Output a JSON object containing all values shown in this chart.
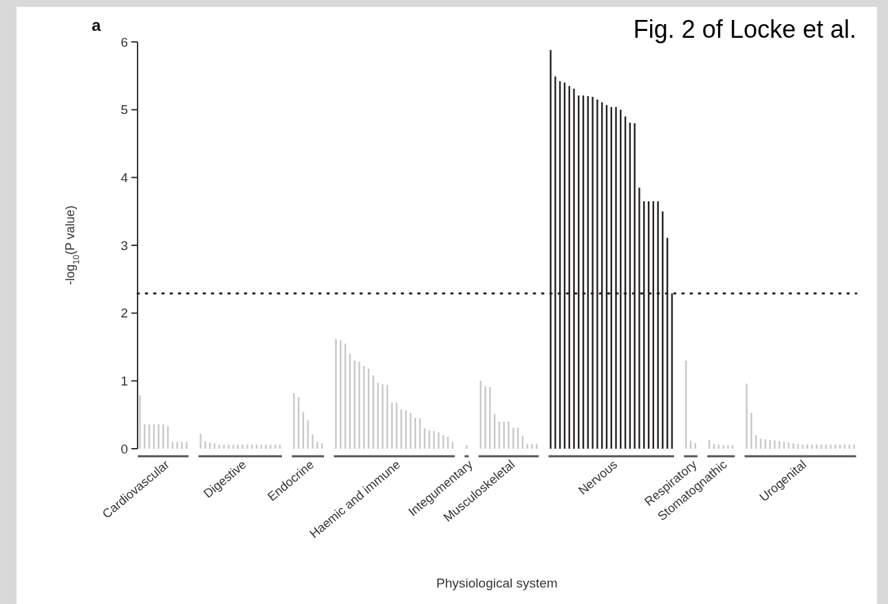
{
  "chart_data": {
    "type": "bar",
    "title": "Fig. 2 of Locke et al.",
    "ylabel": "-log$_{10}$(P value)",
    "annotations": [
      "a",
      "Physiological system"
    ],
    "ylim": [
      0,
      6
    ],
    "yticks": [
      0,
      1,
      2,
      3,
      4,
      5,
      6
    ],
    "grid": false,
    "ref_lines": [
      {
        "axis": "y",
        "value": 2.29,
        "color": "#231f20",
        "line_style": "dotted"
      }
    ],
    "categories": [
      null,
      null,
      null,
      null,
      null,
      null,
      null,
      null,
      null,
      null,
      null,
      null,
      null,
      null,
      null,
      null,
      null,
      null,
      null,
      null,
      null,
      null,
      null,
      null,
      null,
      null,
      null,
      null,
      null,
      null,
      null,
      null,
      null,
      null,
      null,
      null,
      null,
      null,
      null,
      null,
      null,
      null,
      null,
      null,
      null,
      null,
      null,
      null,
      null,
      null,
      null,
      null,
      null,
      null,
      null,
      null,
      null,
      null,
      null,
      null,
      null,
      null,
      null,
      null,
      null,
      null,
      null,
      null,
      null,
      null,
      null,
      null,
      null,
      null,
      null,
      null,
      null,
      null,
      null,
      null,
      null,
      null,
      null,
      null,
      null,
      null,
      null,
      null,
      null,
      null,
      null,
      null,
      null,
      null,
      null,
      null,
      null,
      null,
      null,
      null,
      null,
      null,
      null,
      null,
      null,
      null,
      null,
      null,
      null,
      null,
      null,
      null,
      null,
      null,
      null,
      null,
      null,
      null,
      null,
      null,
      null,
      null,
      null,
      null,
      null,
      null,
      null,
      null,
      null,
      null,
      null,
      null,
      null,
      null,
      null,
      null,
      null,
      null,
      null,
      null,
      null,
      null,
      null,
      null,
      null,
      null,
      null,
      null,
      null,
      null,
      null,
      null,
      null,
      null
    ],
    "series": [
      {
        "name": "Cardiovascular",
        "color": "#c8c8c8",
        "values": [
          0.79,
          0.36,
          0.36,
          0.36,
          0.36,
          0.36,
          0.33,
          0.1,
          0.1,
          0.1,
          0.1,
          null,
          null,
          null,
          null,
          null,
          null,
          null,
          null,
          null,
          null,
          null,
          null,
          null,
          null,
          null,
          null,
          null,
          null,
          null,
          null,
          null,
          null,
          null,
          null,
          null,
          null,
          null,
          null,
          null,
          null,
          null,
          null,
          null,
          null,
          null,
          null,
          null,
          null,
          null,
          null,
          null,
          null,
          null,
          null,
          null,
          null,
          null,
          null,
          null,
          null,
          null,
          null,
          null,
          null,
          null,
          null,
          null,
          null,
          null,
          null,
          null,
          null,
          null,
          null,
          null,
          null,
          null,
          null,
          null,
          null,
          null,
          null,
          null,
          null,
          null,
          null,
          null,
          null,
          null,
          null,
          null,
          null,
          null,
          null,
          null,
          null,
          null,
          null,
          null,
          null,
          null,
          null,
          null,
          null,
          null,
          null,
          null,
          null,
          null,
          null,
          null,
          null,
          null,
          null,
          null,
          null,
          null,
          null,
          null,
          null,
          null,
          null,
          null,
          null,
          null,
          null,
          null,
          null,
          null,
          null,
          null,
          null,
          null,
          null,
          null,
          null,
          null,
          null,
          null,
          null,
          null,
          null,
          null,
          null,
          null,
          null,
          null,
          null,
          null,
          null,
          null,
          null,
          null
        ]
      },
      {
        "name": "Digestive",
        "color": "#c8c8c8",
        "values": [
          null,
          null,
          null,
          null,
          null,
          null,
          null,
          null,
          null,
          null,
          null,
          null,
          null,
          0.22,
          0.11,
          0.09,
          0.08,
          0.06,
          0.06,
          0.06,
          0.06,
          0.06,
          0.06,
          0.06,
          0.06,
          0.06,
          0.06,
          0.06,
          0.06,
          0.06,
          0.06,
          null,
          null,
          null,
          null,
          null,
          null,
          null,
          null,
          null,
          null,
          null,
          null,
          null,
          null,
          null,
          null,
          null,
          null,
          null,
          null,
          null,
          null,
          null,
          null,
          null,
          null,
          null,
          null,
          null,
          null,
          null,
          null,
          null,
          null,
          null,
          null,
          null,
          null,
          null,
          null,
          null,
          null,
          null,
          null,
          null,
          null,
          null,
          null,
          null,
          null,
          null,
          null,
          null,
          null,
          null,
          null,
          null,
          null,
          null,
          null,
          null,
          null,
          null,
          null,
          null,
          null,
          null,
          null,
          null,
          null,
          null,
          null,
          null,
          null,
          null,
          null,
          null,
          null,
          null,
          null,
          null,
          null,
          null,
          null,
          null,
          null,
          null,
          null,
          null,
          null,
          null,
          null,
          null,
          null,
          null,
          null,
          null,
          null,
          null,
          null,
          null,
          null,
          null,
          null,
          null,
          null,
          null,
          null,
          null,
          null,
          null,
          null,
          null,
          null,
          null,
          null,
          null,
          null,
          null,
          null,
          null,
          null,
          null
        ]
      },
      {
        "name": "Endocrine",
        "color": "#c8c8c8",
        "values": [
          null,
          null,
          null,
          null,
          null,
          null,
          null,
          null,
          null,
          null,
          null,
          null,
          null,
          null,
          null,
          null,
          null,
          null,
          null,
          null,
          null,
          null,
          null,
          null,
          null,
          null,
          null,
          null,
          null,
          null,
          null,
          null,
          null,
          0.82,
          0.76,
          0.54,
          0.42,
          0.21,
          0.1,
          0.08,
          null,
          null,
          null,
          null,
          null,
          null,
          null,
          null,
          null,
          null,
          null,
          null,
          null,
          null,
          null,
          null,
          null,
          null,
          null,
          null,
          null,
          null,
          null,
          null,
          null,
          null,
          null,
          null,
          null,
          null,
          null,
          null,
          null,
          null,
          null,
          null,
          null,
          null,
          null,
          null,
          null,
          null,
          null,
          null,
          null,
          null,
          null,
          null,
          null,
          null,
          null,
          null,
          null,
          null,
          null,
          null,
          null,
          null,
          null,
          null,
          null,
          null,
          null,
          null,
          null,
          null,
          null,
          null,
          null,
          null,
          null,
          null,
          null,
          null,
          null,
          null,
          null,
          null,
          null,
          null,
          null,
          null,
          null,
          null,
          null,
          null,
          null,
          null,
          null,
          null,
          null,
          null,
          null,
          null,
          null,
          null,
          null,
          null,
          null,
          null,
          null,
          null,
          null,
          null,
          null,
          null,
          null,
          null,
          null,
          null,
          null,
          null,
          null,
          null
        ]
      },
      {
        "name": "Haemic and immune",
        "color": "#c8c8c8",
        "values": [
          null,
          null,
          null,
          null,
          null,
          null,
          null,
          null,
          null,
          null,
          null,
          null,
          null,
          null,
          null,
          null,
          null,
          null,
          null,
          null,
          null,
          null,
          null,
          null,
          null,
          null,
          null,
          null,
          null,
          null,
          null,
          null,
          null,
          null,
          null,
          null,
          null,
          null,
          null,
          null,
          null,
          null,
          1.62,
          1.6,
          1.55,
          1.4,
          1.3,
          1.28,
          1.22,
          1.18,
          1.08,
          0.97,
          0.95,
          0.94,
          0.68,
          0.68,
          0.58,
          0.57,
          0.53,
          0.46,
          0.45,
          0.3,
          0.27,
          0.26,
          0.24,
          0.2,
          0.18,
          0.1,
          null,
          null,
          null,
          null,
          null,
          null,
          null,
          null,
          null,
          null,
          null,
          null,
          null,
          null,
          null,
          null,
          null,
          null,
          null,
          null,
          null,
          null,
          null,
          null,
          null,
          null,
          null,
          null,
          null,
          null,
          null,
          null,
          null,
          null,
          null,
          null,
          null,
          null,
          null,
          null,
          null,
          null,
          null,
          null,
          null,
          null,
          null,
          null,
          null,
          null,
          null,
          null,
          null,
          null,
          null,
          null,
          null,
          null,
          null,
          null,
          null,
          null,
          null,
          null,
          null,
          null,
          null,
          null,
          null,
          null,
          null,
          null,
          null,
          null,
          null,
          null,
          null,
          null,
          null,
          null,
          null,
          null,
          null,
          null,
          null,
          null
        ]
      },
      {
        "name": "Integumentary",
        "color": "#c8c8c8",
        "values": [
          null,
          null,
          null,
          null,
          null,
          null,
          null,
          null,
          null,
          null,
          null,
          null,
          null,
          null,
          null,
          null,
          null,
          null,
          null,
          null,
          null,
          null,
          null,
          null,
          null,
          null,
          null,
          null,
          null,
          null,
          null,
          null,
          null,
          null,
          null,
          null,
          null,
          null,
          null,
          null,
          null,
          null,
          null,
          null,
          null,
          null,
          null,
          null,
          null,
          null,
          null,
          null,
          null,
          null,
          null,
          null,
          null,
          null,
          null,
          null,
          null,
          null,
          null,
          null,
          null,
          null,
          null,
          null,
          null,
          null,
          0.05,
          null,
          null,
          null,
          null,
          null,
          null,
          null,
          null,
          null,
          null,
          null,
          null,
          null,
          null,
          null,
          null,
          null,
          null,
          null,
          null,
          null,
          null,
          null,
          null,
          null,
          null,
          null,
          null,
          null,
          null,
          null,
          null,
          null,
          null,
          null,
          null,
          null,
          null,
          null,
          null,
          null,
          null,
          null,
          null,
          null,
          null,
          null,
          null,
          null,
          null,
          null,
          null,
          null,
          null,
          null,
          null,
          null,
          null,
          null,
          null,
          null,
          null,
          null,
          null,
          null,
          null,
          null,
          null,
          null,
          null,
          null,
          null,
          null,
          null,
          null,
          null,
          null,
          null,
          null,
          null,
          null,
          null,
          null
        ]
      },
      {
        "name": "Musculoskeletal",
        "color": "#c8c8c8",
        "values": [
          null,
          null,
          null,
          null,
          null,
          null,
          null,
          null,
          null,
          null,
          null,
          null,
          null,
          null,
          null,
          null,
          null,
          null,
          null,
          null,
          null,
          null,
          null,
          null,
          null,
          null,
          null,
          null,
          null,
          null,
          null,
          null,
          null,
          null,
          null,
          null,
          null,
          null,
          null,
          null,
          null,
          null,
          null,
          null,
          null,
          null,
          null,
          null,
          null,
          null,
          null,
          null,
          null,
          null,
          null,
          null,
          null,
          null,
          null,
          null,
          null,
          null,
          null,
          null,
          null,
          null,
          null,
          null,
          null,
          null,
          null,
          null,
          null,
          1.0,
          0.92,
          0.91,
          0.51,
          0.4,
          0.4,
          0.4,
          0.31,
          0.31,
          0.19,
          0.07,
          0.07,
          0.07,
          null,
          null,
          null,
          null,
          null,
          null,
          null,
          null,
          null,
          null,
          null,
          null,
          null,
          null,
          null,
          null,
          null,
          null,
          null,
          null,
          null,
          null,
          null,
          null,
          null,
          null,
          null,
          null,
          null,
          null,
          null,
          null,
          null,
          null,
          null,
          null,
          null,
          null,
          null,
          null,
          null,
          null,
          null,
          null,
          null,
          null,
          null,
          null,
          null,
          null,
          null,
          null,
          null,
          null,
          null,
          null,
          null,
          null,
          null,
          null,
          null,
          null,
          null,
          null,
          null,
          null,
          null,
          null
        ]
      },
      {
        "name": "Nervous",
        "color": "#231f20",
        "values": [
          null,
          null,
          null,
          null,
          null,
          null,
          null,
          null,
          null,
          null,
          null,
          null,
          null,
          null,
          null,
          null,
          null,
          null,
          null,
          null,
          null,
          null,
          null,
          null,
          null,
          null,
          null,
          null,
          null,
          null,
          null,
          null,
          null,
          null,
          null,
          null,
          null,
          null,
          null,
          null,
          null,
          null,
          null,
          null,
          null,
          null,
          null,
          null,
          null,
          null,
          null,
          null,
          null,
          null,
          null,
          null,
          null,
          null,
          null,
          null,
          null,
          null,
          null,
          null,
          null,
          null,
          null,
          null,
          null,
          null,
          null,
          null,
          null,
          null,
          null,
          null,
          null,
          null,
          null,
          null,
          null,
          null,
          null,
          null,
          null,
          null,
          null,
          null,
          5.88,
          5.49,
          5.42,
          5.4,
          5.35,
          5.31,
          5.21,
          5.21,
          5.2,
          5.19,
          5.15,
          5.11,
          5.07,
          5.04,
          5.04,
          5.0,
          4.9,
          4.81,
          4.8,
          3.85,
          3.65,
          3.65,
          3.65,
          3.65,
          3.5,
          3.11,
          2.29,
          null,
          null,
          null,
          null,
          null,
          null,
          null,
          null,
          null,
          null,
          null,
          null,
          null,
          null,
          null,
          null,
          null,
          null,
          null,
          null,
          null,
          null,
          null,
          null,
          null,
          null,
          null,
          null,
          null,
          null,
          null,
          null,
          null,
          null,
          null,
          null,
          null,
          null,
          null
        ]
      },
      {
        "name": "Respiratory",
        "color": "#c8c8c8",
        "values": [
          null,
          null,
          null,
          null,
          null,
          null,
          null,
          null,
          null,
          null,
          null,
          null,
          null,
          null,
          null,
          null,
          null,
          null,
          null,
          null,
          null,
          null,
          null,
          null,
          null,
          null,
          null,
          null,
          null,
          null,
          null,
          null,
          null,
          null,
          null,
          null,
          null,
          null,
          null,
          null,
          null,
          null,
          null,
          null,
          null,
          null,
          null,
          null,
          null,
          null,
          null,
          null,
          null,
          null,
          null,
          null,
          null,
          null,
          null,
          null,
          null,
          null,
          null,
          null,
          null,
          null,
          null,
          null,
          null,
          null,
          null,
          null,
          null,
          null,
          null,
          null,
          null,
          null,
          null,
          null,
          null,
          null,
          null,
          null,
          null,
          null,
          null,
          null,
          null,
          null,
          null,
          null,
          null,
          null,
          null,
          null,
          null,
          null,
          null,
          null,
          null,
          null,
          null,
          null,
          null,
          null,
          null,
          null,
          null,
          null,
          null,
          null,
          null,
          null,
          null,
          null,
          null,
          1.3,
          0.12,
          0.08,
          null,
          null,
          null,
          null,
          null,
          null,
          null,
          null,
          null,
          null,
          null,
          null,
          null,
          null,
          null,
          null,
          null,
          null,
          null,
          null,
          null,
          null,
          null,
          null,
          null,
          null,
          null,
          null,
          null,
          null,
          null,
          null,
          null,
          null
        ]
      },
      {
        "name": "Stomatognathic",
        "color": "#c8c8c8",
        "values": [
          null,
          null,
          null,
          null,
          null,
          null,
          null,
          null,
          null,
          null,
          null,
          null,
          null,
          null,
          null,
          null,
          null,
          null,
          null,
          null,
          null,
          null,
          null,
          null,
          null,
          null,
          null,
          null,
          null,
          null,
          null,
          null,
          null,
          null,
          null,
          null,
          null,
          null,
          null,
          null,
          null,
          null,
          null,
          null,
          null,
          null,
          null,
          null,
          null,
          null,
          null,
          null,
          null,
          null,
          null,
          null,
          null,
          null,
          null,
          null,
          null,
          null,
          null,
          null,
          null,
          null,
          null,
          null,
          null,
          null,
          null,
          null,
          null,
          null,
          null,
          null,
          null,
          null,
          null,
          null,
          null,
          null,
          null,
          null,
          null,
          null,
          null,
          null,
          null,
          null,
          null,
          null,
          null,
          null,
          null,
          null,
          null,
          null,
          null,
          null,
          null,
          null,
          null,
          null,
          null,
          null,
          null,
          null,
          null,
          null,
          null,
          null,
          null,
          null,
          null,
          null,
          null,
          null,
          null,
          null,
          null,
          null,
          0.13,
          0.07,
          0.06,
          0.05,
          0.05,
          0.05,
          null,
          null,
          null,
          null,
          null,
          null,
          null,
          null,
          null,
          null,
          null,
          null,
          null,
          null,
          null,
          null,
          null,
          null,
          null,
          null,
          null,
          null,
          null,
          null,
          null,
          null
        ]
      },
      {
        "name": "Urogenital",
        "color": "#c8c8c8",
        "values": [
          null,
          null,
          null,
          null,
          null,
          null,
          null,
          null,
          null,
          null,
          null,
          null,
          null,
          null,
          null,
          null,
          null,
          null,
          null,
          null,
          null,
          null,
          null,
          null,
          null,
          null,
          null,
          null,
          null,
          null,
          null,
          null,
          null,
          null,
          null,
          null,
          null,
          null,
          null,
          null,
          null,
          null,
          null,
          null,
          null,
          null,
          null,
          null,
          null,
          null,
          null,
          null,
          null,
          null,
          null,
          null,
          null,
          null,
          null,
          null,
          null,
          null,
          null,
          null,
          null,
          null,
          null,
          null,
          null,
          null,
          null,
          null,
          null,
          null,
          null,
          null,
          null,
          null,
          null,
          null,
          null,
          null,
          null,
          null,
          null,
          null,
          null,
          null,
          null,
          null,
          null,
          null,
          null,
          null,
          null,
          null,
          null,
          null,
          null,
          null,
          null,
          null,
          null,
          null,
          null,
          null,
          null,
          null,
          null,
          null,
          null,
          null,
          null,
          null,
          null,
          null,
          null,
          null,
          null,
          null,
          null,
          null,
          null,
          null,
          null,
          null,
          null,
          null,
          null,
          null,
          0.96,
          0.53,
          0.2,
          0.15,
          0.14,
          0.13,
          0.12,
          0.11,
          0.1,
          0.09,
          0.08,
          0.07,
          0.06,
          0.06,
          0.06,
          0.06,
          0.06,
          0.06,
          0.06,
          0.06,
          0.06,
          0.06,
          0.06,
          0.06
        ]
      }
    ]
  }
}
